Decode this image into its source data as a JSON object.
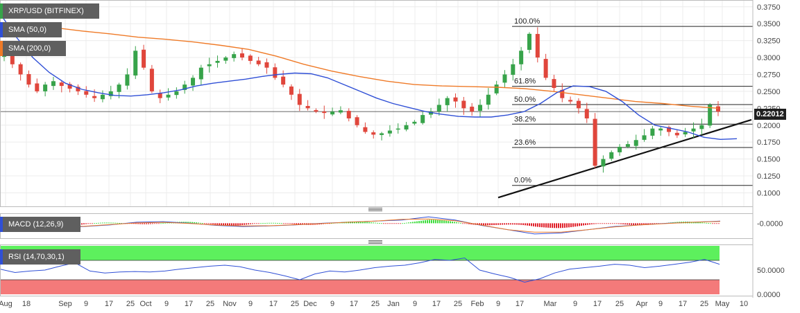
{
  "legends": {
    "title": "XRP/USD (BITFINEX)",
    "sma50": "SMA (50,0)",
    "sma200": "SMA (200,0)",
    "macd": "MACD (12,26,9)",
    "rsi": "RSI (14,70,30,1)"
  },
  "colors": {
    "up": "#37a34a",
    "down": "#e0463c",
    "sma50": "#2f4fd6",
    "sma200": "#ef7a27",
    "macd_line": "#2f4fd6",
    "signal_line": "#ef7a27",
    "rsi_line": "#2f4fd6",
    "overbought": "#5df05d",
    "oversold": "#f47a7a",
    "legend_bg": "#5f5f5f"
  },
  "current_price_label": "0.22012",
  "macd_axis_label": "-0.0000",
  "rsi_axis_labels": [
    "50.0000",
    "0.0000"
  ],
  "chart_data": {
    "type": "candlestick",
    "title": "XRP/USD (BITFINEX)",
    "price_axis": {
      "ylim": [
        0.08,
        0.385
      ],
      "ticks": [
        0.1,
        0.125,
        0.15,
        0.175,
        0.2,
        0.225,
        0.25,
        0.275,
        0.3,
        0.325,
        0.35,
        0.375
      ],
      "tick_labels": [
        "0.1000",
        "0.1250",
        "0.1500",
        "0.1750",
        "0.2000",
        "0.2250",
        "0.2500",
        "0.2750",
        "0.3000",
        "0.3250",
        "0.3500",
        "0.3750"
      ]
    },
    "x_ticks": [
      "Aug",
      "18",
      "Sep",
      "9",
      "17",
      "25",
      "Oct",
      "9",
      "17",
      "25",
      "Nov",
      "9",
      "17",
      "25",
      "Dec",
      "9",
      "17",
      "25",
      "Jan",
      "9",
      "17",
      "25",
      "Feb",
      "9",
      "17",
      "Mar",
      "9",
      "17",
      "25",
      "Apr",
      "9",
      "17",
      "25",
      "May",
      "10"
    ],
    "current_price": 0.22012,
    "fibonacci": [
      {
        "label": "100.0%",
        "price": 0.346
      },
      {
        "label": "61.8%",
        "price": 0.2575
      },
      {
        "label": "50.0%",
        "price": 0.2305
      },
      {
        "label": "38.2%",
        "price": 0.2015
      },
      {
        "label": "23.6%",
        "price": 0.167
      },
      {
        "label": "0.0%",
        "price": 0.111
      }
    ],
    "trendline": {
      "start": 0.093,
      "end": 0.208
    },
    "close": [
      0.305,
      0.29,
      0.275,
      0.26,
      0.25,
      0.26,
      0.265,
      0.258,
      0.254,
      0.25,
      0.245,
      0.24,
      0.245,
      0.25,
      0.26,
      0.275,
      0.31,
      0.285,
      0.25,
      0.24,
      0.245,
      0.25,
      0.26,
      0.27,
      0.285,
      0.29,
      0.295,
      0.3,
      0.305,
      0.3,
      0.295,
      0.29,
      0.285,
      0.27,
      0.26,
      0.245,
      0.23,
      0.225,
      0.22,
      0.218,
      0.22,
      0.222,
      0.21,
      0.2,
      0.19,
      0.186,
      0.188,
      0.192,
      0.195,
      0.2,
      0.205,
      0.215,
      0.22,
      0.23,
      0.24,
      0.235,
      0.225,
      0.22,
      0.23,
      0.245,
      0.26,
      0.275,
      0.29,
      0.31,
      0.335,
      0.3,
      0.27,
      0.255,
      0.24,
      0.235,
      0.225,
      0.21,
      0.14,
      0.15,
      0.16,
      0.168,
      0.172,
      0.178,
      0.185,
      0.195,
      0.195,
      0.19,
      0.185,
      0.19,
      0.195,
      0.2,
      0.23,
      0.22
    ],
    "sma50": [
      0.365,
      0.33,
      0.3,
      0.278,
      0.262,
      0.253,
      0.248,
      0.244,
      0.243,
      0.245,
      0.248,
      0.252,
      0.258,
      0.262,
      0.265,
      0.268,
      0.272,
      0.275,
      0.277,
      0.276,
      0.27,
      0.26,
      0.25,
      0.24,
      0.232,
      0.226,
      0.22,
      0.216,
      0.213,
      0.212,
      0.212,
      0.215,
      0.22,
      0.232,
      0.248,
      0.258,
      0.257,
      0.25,
      0.235,
      0.215,
      0.2,
      0.195,
      0.19,
      0.182,
      0.179,
      0.18
    ],
    "sma200": [
      0.35,
      0.348,
      0.344,
      0.339,
      0.335,
      0.33,
      0.327,
      0.323,
      0.318,
      0.312,
      0.302,
      0.29,
      0.28,
      0.272,
      0.265,
      0.26,
      0.258,
      0.257,
      0.256,
      0.254,
      0.25,
      0.245,
      0.24,
      0.235,
      0.232,
      0.228,
      0.225
    ],
    "macd": {
      "values": [
        0.0,
        -0.005,
        -0.008,
        -0.006,
        -0.003,
        0.002,
        0.003,
        0.0,
        -0.004,
        -0.006,
        -0.005,
        -0.003,
        0.0,
        0.002,
        0.004,
        0.006,
        0.012,
        0.006,
        -0.004,
        -0.012,
        -0.02,
        -0.018,
        -0.012,
        -0.006,
        -0.003,
        0.0,
        0.002,
        0.004
      ]
    },
    "rsi": {
      "overbought": 70,
      "oversold": 30,
      "ylim": [
        0,
        100
      ],
      "values": [
        52,
        45,
        48,
        50,
        58,
        65,
        48,
        44,
        46,
        47,
        46,
        48,
        52,
        55,
        58,
        60,
        57,
        50,
        45,
        38,
        30,
        42,
        48,
        46,
        50,
        55,
        58,
        60,
        65,
        72,
        70,
        75,
        50,
        42,
        35,
        25,
        32,
        44,
        52,
        55,
        58,
        62,
        60,
        55,
        58,
        62,
        66,
        72,
        62
      ]
    }
  }
}
